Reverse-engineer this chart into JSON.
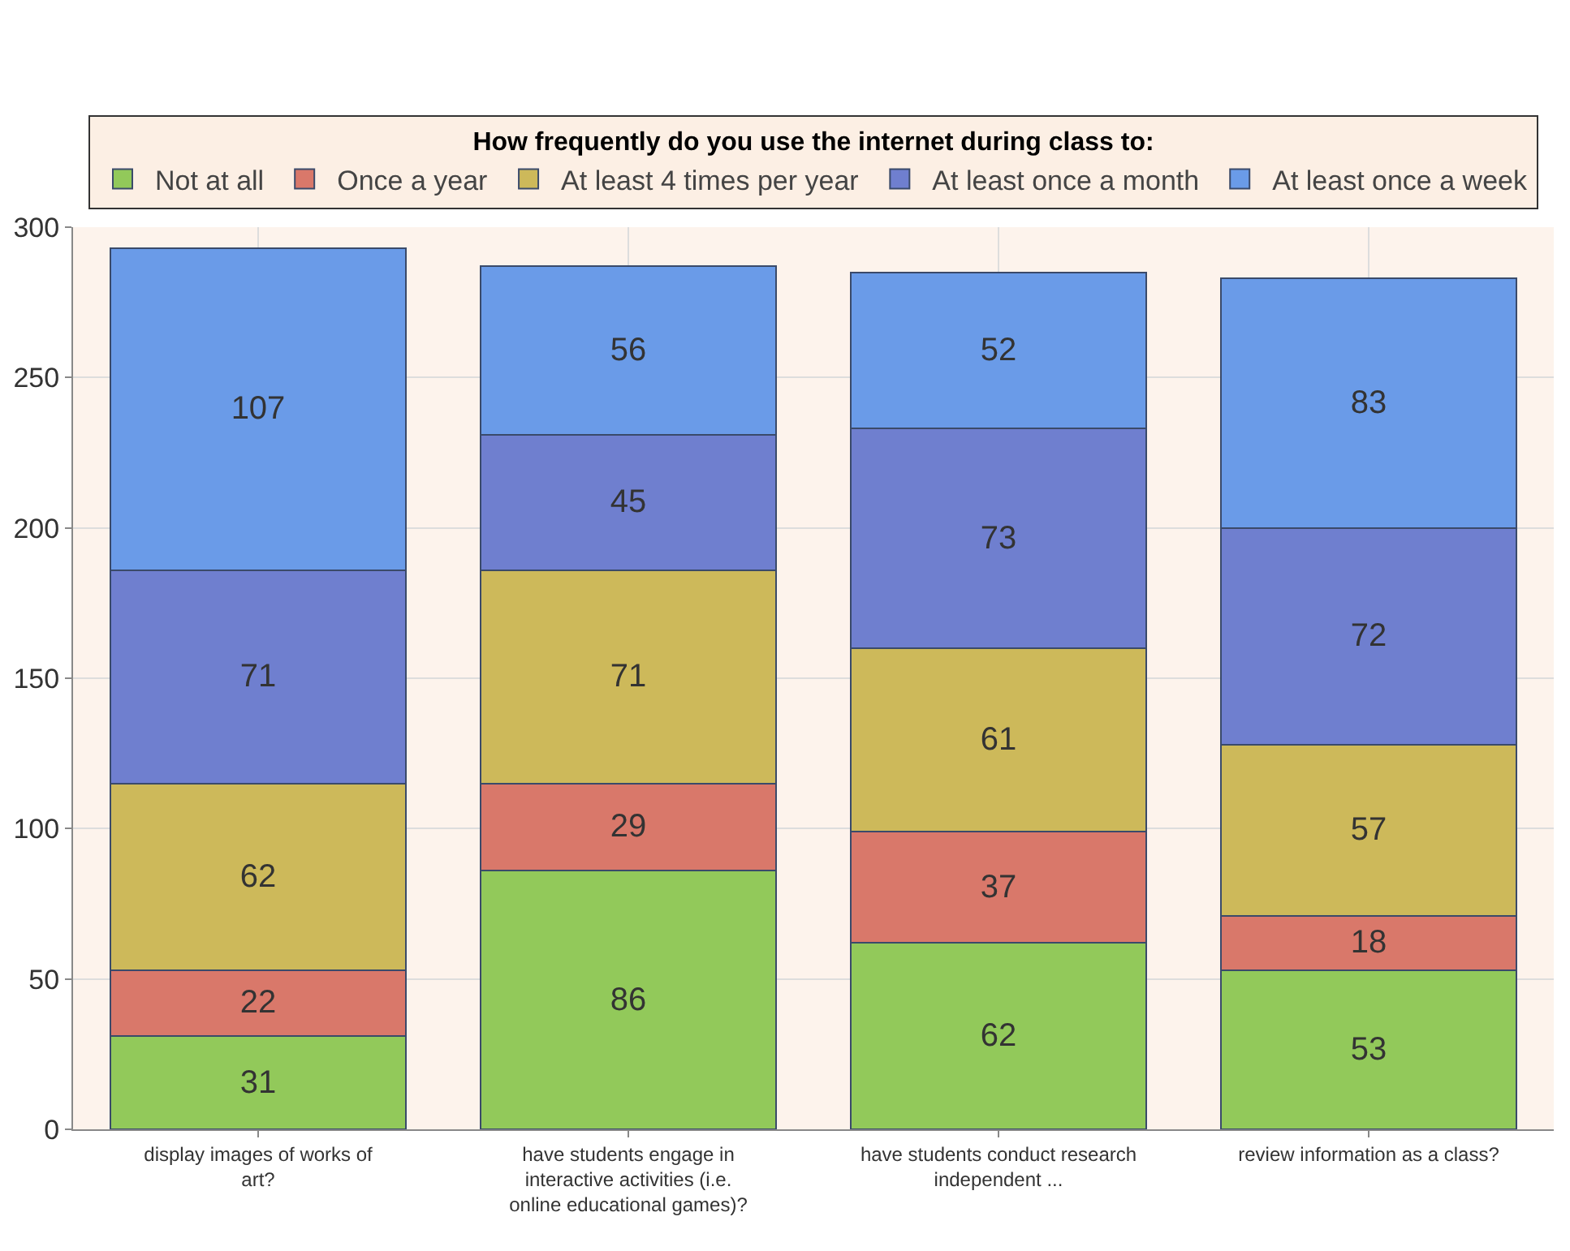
{
  "chart_data": {
    "type": "bar",
    "stacked": true,
    "legend_title": "How frequently do you use the internet during class to:",
    "categories": [
      "display images of works of art?",
      "have students engage in interactive activities (i.e. online educational games)?",
      "have students conduct research independent ...",
      "review information as a class?"
    ],
    "series": [
      {
        "name": "Not at all",
        "color": "#92c95a",
        "values": [
          31,
          86,
          62,
          53
        ]
      },
      {
        "name": "Once a year",
        "color": "#d9786a",
        "values": [
          22,
          29,
          37,
          18
        ]
      },
      {
        "name": "At least 4 times per year",
        "color": "#cdb95a",
        "values": [
          62,
          71,
          61,
          57
        ]
      },
      {
        "name": "At least once a month",
        "color": "#6f7fcf",
        "values": [
          71,
          45,
          73,
          72
        ]
      },
      {
        "name": "At least once a week",
        "color": "#6a9be8",
        "values": [
          107,
          56,
          52,
          83
        ]
      }
    ],
    "ylim": [
      0,
      300
    ],
    "yticks": [
      0,
      50,
      100,
      150,
      200,
      250,
      300
    ],
    "grid": true,
    "legend": "top",
    "data_labels": true
  }
}
